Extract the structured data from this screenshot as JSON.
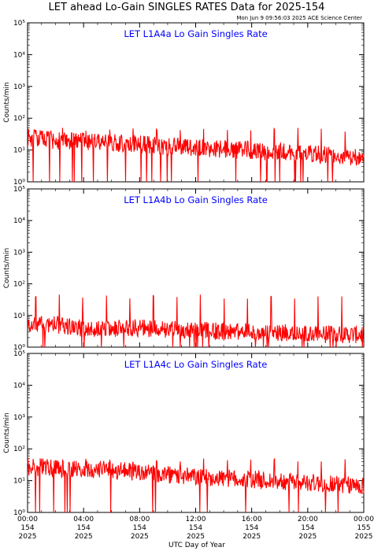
{
  "title": "LET ahead Lo-Gain SINGLES RATES Data for 2025-154",
  "timestamp": "Mon Jun  9 09:56:03 2025 ACE Science Center",
  "xlabel": "UTC Day of Year",
  "colors": {
    "trace": "#ff0000",
    "panel_title": "#0000ff",
    "axes": "#000000"
  },
  "chart_data": [
    {
      "type": "line",
      "title": "LET L1A4a Lo Gain Singles Rate",
      "ylabel": "Counts/min",
      "yscale": "log",
      "ylim": [
        1,
        100000
      ],
      "ytick_labels": [
        "10⁰",
        "10¹",
        "10²",
        "10³",
        "10⁴",
        "10⁵"
      ],
      "xlim": [
        "00:00",
        "24:00"
      ],
      "series": [
        {
          "x": [
            "00:00",
            "01:00",
            "02:00",
            "03:00",
            "04:00",
            "05:00",
            "06:00",
            "07:00",
            "08:00",
            "09:00",
            "10:00",
            "11:00",
            "12:00",
            "13:00",
            "14:00",
            "15:00",
            "16:00",
            "17:00",
            "18:00",
            "19:00",
            "20:00",
            "21:00",
            "22:00",
            "23:00",
            "24:00"
          ],
          "values": [
            25,
            22,
            20,
            19,
            18,
            18,
            17,
            16,
            15,
            14,
            13,
            13,
            12,
            11,
            11,
            10,
            10,
            9,
            9,
            8,
            8,
            7,
            7,
            6,
            6
          ]
        }
      ],
      "spikes": {
        "first": "02:30",
        "interval_hours": 1.68,
        "peak": 45
      }
    },
    {
      "type": "line",
      "title": "LET L1A4b Lo Gain Singles Rate",
      "ylabel": "Counts/min",
      "yscale": "log",
      "ylim": [
        1,
        100000
      ],
      "ytick_labels": [
        "10⁰",
        "10¹",
        "10²",
        "10³",
        "10⁴",
        "10⁵"
      ],
      "xlim": [
        "00:00",
        "24:00"
      ],
      "series": [
        {
          "x": [
            "00:00",
            "02:00",
            "04:00",
            "06:00",
            "08:00",
            "10:00",
            "12:00",
            "14:00",
            "16:00",
            "18:00",
            "20:00",
            "22:00",
            "24:00"
          ],
          "values": [
            5,
            5,
            4,
            4,
            4,
            3.5,
            3.5,
            3,
            3,
            3,
            2.5,
            2.5,
            2.5
          ]
        }
      ],
      "spikes": {
        "first": "00:35",
        "interval_hours": 1.68,
        "peak": 40
      }
    },
    {
      "type": "line",
      "title": "LET L1A4c Lo Gain Singles Rate",
      "ylabel": "Counts/min",
      "yscale": "log",
      "ylim": [
        1,
        100000
      ],
      "ytick_labels": [
        "10⁰",
        "10¹",
        "10²",
        "10³",
        "10⁴",
        "10⁵"
      ],
      "xlim": [
        "00:00",
        "24:00"
      ],
      "series": [
        {
          "x": [
            "00:00",
            "01:00",
            "02:00",
            "03:00",
            "04:00",
            "05:00",
            "06:00",
            "07:00",
            "08:00",
            "09:00",
            "10:00",
            "11:00",
            "12:00",
            "13:00",
            "14:00",
            "15:00",
            "16:00",
            "17:00",
            "18:00",
            "19:00",
            "20:00",
            "21:00",
            "22:00",
            "23:00",
            "24:00"
          ],
          "values": [
            28,
            26,
            24,
            23,
            22,
            22,
            21,
            20,
            18,
            16,
            15,
            14,
            13,
            13,
            12,
            11,
            11,
            10,
            10,
            9,
            9,
            8,
            8,
            7,
            7
          ]
        }
      ],
      "spikes": {
        "first": "02:30",
        "interval_hours": 1.68,
        "peak": 45
      }
    }
  ],
  "x_ticks": [
    {
      "time": "00:00",
      "doy": "154",
      "year": "2025"
    },
    {
      "time": "04:00",
      "doy": "154",
      "year": "2025"
    },
    {
      "time": "08:00",
      "doy": "154",
      "year": "2025"
    },
    {
      "time": "12:00",
      "doy": "154",
      "year": "2025"
    },
    {
      "time": "16:00",
      "doy": "154",
      "year": "2025"
    },
    {
      "time": "20:00",
      "doy": "154",
      "year": "2025"
    },
    {
      "time": "00:00",
      "doy": "155",
      "year": "2025"
    }
  ]
}
